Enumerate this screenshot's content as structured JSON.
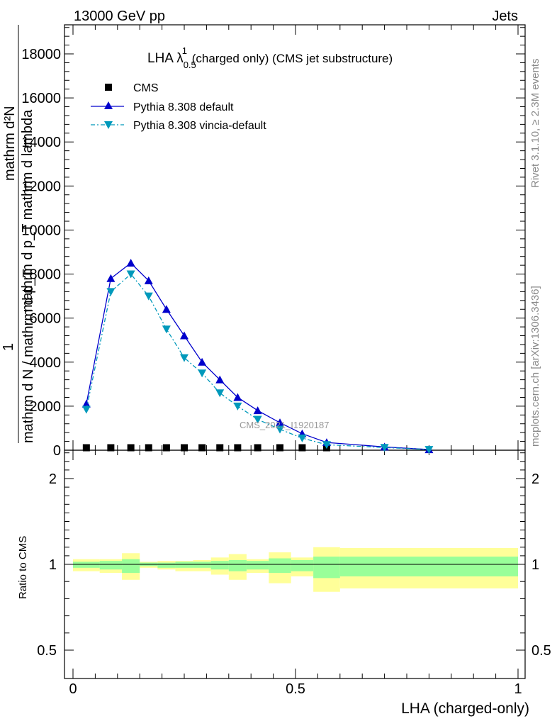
{
  "header": {
    "left": "13000 GeV pp",
    "right": "Jets"
  },
  "side_labels": {
    "rivet": "Rivet 3.1.10, ≥ 2.3M events",
    "mcplots": "mcplots.cern.ch [arXiv:1306.3436]"
  },
  "plot_title": {
    "main": "LHA λ",
    "sup": "1",
    "sub": "0.5",
    "rest": " (charged only) (CMS jet substructure)"
  },
  "watermark": "CMS_2021_I1920187",
  "ylabel_main": {
    "numerator": "mathrm d²N",
    "denominator": "mathrm d p_T mathrm d lambda",
    "prefix_num": "1",
    "prefix_den": "mathrm d N / mathrm d p_T"
  },
  "ratio_ylabel": "Ratio to CMS",
  "xlabel": "LHA (charged-only)",
  "legend": [
    {
      "label": "CMS",
      "color": "#000000",
      "marker": "square"
    },
    {
      "label": "Pythia 8.308 default",
      "color": "#0000cc",
      "marker": "triangle-up"
    },
    {
      "label": "Pythia 8.308 vincia-default",
      "color": "#0099bb",
      "marker": "triangle-down"
    }
  ],
  "chart_data": [
    {
      "type": "line",
      "panel": "main",
      "xlim": [
        0,
        1
      ],
      "ylim": [
        0,
        19000
      ],
      "yticks": [
        0,
        2000,
        4000,
        6000,
        8000,
        10000,
        12000,
        14000,
        16000,
        18000
      ],
      "ytick_labels": [
        "0",
        "2000",
        "4000",
        "6000",
        "8000",
        "10000",
        "12000",
        "14000",
        "16000",
        "18000"
      ],
      "series": [
        {
          "name": "CMS",
          "x": [
            0.03,
            0.085,
            0.13,
            0.17,
            0.21,
            0.25,
            0.29,
            0.33,
            0.37,
            0.415,
            0.465,
            0.515,
            0.57
          ],
          "values": [
            80,
            80,
            80,
            80,
            80,
            80,
            80,
            80,
            80,
            80,
            80,
            80,
            80
          ]
        },
        {
          "name": "Pythia 8.308 default",
          "x": [
            0.03,
            0.085,
            0.13,
            0.17,
            0.21,
            0.25,
            0.29,
            0.33,
            0.37,
            0.415,
            0.465,
            0.515,
            0.57,
            0.7,
            0.8
          ],
          "values": [
            2100,
            7800,
            8500,
            7700,
            6400,
            5200,
            4000,
            3200,
            2400,
            1800,
            1250,
            750,
            350,
            150,
            30
          ]
        },
        {
          "name": "Pythia 8.308 vincia-default",
          "x": [
            0.03,
            0.085,
            0.13,
            0.17,
            0.21,
            0.25,
            0.29,
            0.33,
            0.37,
            0.415,
            0.465,
            0.515,
            0.57,
            0.7,
            0.8
          ],
          "values": [
            1850,
            7200,
            8000,
            7000,
            5500,
            4200,
            3500,
            2600,
            2000,
            1400,
            950,
            550,
            250,
            120,
            30
          ]
        }
      ]
    },
    {
      "type": "area",
      "panel": "ratio",
      "xlim": [
        0,
        1
      ],
      "ylim": [
        0.4,
        2.4
      ],
      "ytick_labels": [
        "0.5",
        "1",
        "2"
      ],
      "xtick_labels": [
        "0",
        "0.5",
        "1"
      ],
      "bins": [
        {
          "x0": 0.0,
          "x1": 0.06,
          "stat": [
            0.98,
            1.03
          ],
          "total": [
            0.96,
            1.06
          ]
        },
        {
          "x0": 0.06,
          "x1": 0.11,
          "stat": [
            0.97,
            1.04
          ],
          "total": [
            0.95,
            1.06
          ]
        },
        {
          "x0": 0.11,
          "x1": 0.15,
          "stat": [
            0.95,
            1.06
          ],
          "total": [
            0.91,
            1.13
          ]
        },
        {
          "x0": 0.15,
          "x1": 0.19,
          "stat": [
            0.99,
            1.02
          ],
          "total": [
            0.98,
            1.03
          ]
        },
        {
          "x0": 0.19,
          "x1": 0.23,
          "stat": [
            0.98,
            1.02
          ],
          "total": [
            0.97,
            1.04
          ]
        },
        {
          "x0": 0.23,
          "x1": 0.27,
          "stat": [
            0.98,
            1.03
          ],
          "total": [
            0.96,
            1.04
          ]
        },
        {
          "x0": 0.27,
          "x1": 0.31,
          "stat": [
            0.98,
            1.03
          ],
          "total": [
            0.96,
            1.05
          ]
        },
        {
          "x0": 0.31,
          "x1": 0.35,
          "stat": [
            0.97,
            1.04
          ],
          "total": [
            0.94,
            1.08
          ]
        },
        {
          "x0": 0.35,
          "x1": 0.39,
          "stat": [
            0.96,
            1.05
          ],
          "total": [
            0.91,
            1.12
          ]
        },
        {
          "x0": 0.39,
          "x1": 0.44,
          "stat": [
            0.97,
            1.04
          ],
          "total": [
            0.95,
            1.06
          ]
        },
        {
          "x0": 0.44,
          "x1": 0.49,
          "stat": [
            0.95,
            1.07
          ],
          "total": [
            0.89,
            1.14
          ]
        },
        {
          "x0": 0.49,
          "x1": 0.54,
          "stat": [
            0.96,
            1.05
          ],
          "total": [
            0.93,
            1.08
          ]
        },
        {
          "x0": 0.54,
          "x1": 0.6,
          "stat": [
            0.92,
            1.09
          ],
          "total": [
            0.84,
            1.2
          ]
        },
        {
          "x0": 0.6,
          "x1": 1.0,
          "stat": [
            0.93,
            1.09
          ],
          "total": [
            0.86,
            1.19
          ]
        }
      ]
    }
  ]
}
